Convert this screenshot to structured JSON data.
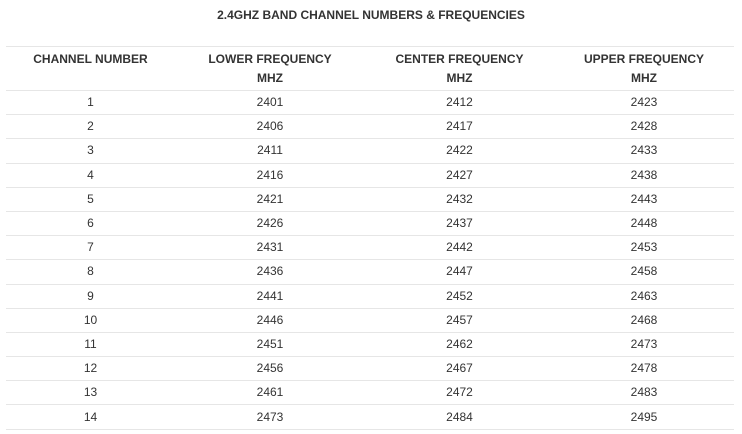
{
  "page": {
    "title": "2.4GHZ BAND CHANNEL NUMBERS & FREQUENCIES"
  },
  "table": {
    "headers": [
      {
        "line1": "CHANNEL NUMBER",
        "line2": ""
      },
      {
        "line1": "LOWER FREQUENCY",
        "line2": "MHZ"
      },
      {
        "line1": "CENTER FREQUENCY",
        "line2": "MHZ"
      },
      {
        "line1": "UPPER FREQUENCY",
        "line2": "MHZ"
      }
    ],
    "rows": [
      [
        "1",
        "2401",
        "2412",
        "2423"
      ],
      [
        "2",
        "2406",
        "2417",
        "2428"
      ],
      [
        "3",
        "2411",
        "2422",
        "2433"
      ],
      [
        "4",
        "2416",
        "2427",
        "2438"
      ],
      [
        "5",
        "2421",
        "2432",
        "2443"
      ],
      [
        "6",
        "2426",
        "2437",
        "2448"
      ],
      [
        "7",
        "2431",
        "2442",
        "2453"
      ],
      [
        "8",
        "2436",
        "2447",
        "2458"
      ],
      [
        "9",
        "2441",
        "2452",
        "2463"
      ],
      [
        "10",
        "2446",
        "2457",
        "2468"
      ],
      [
        "11",
        "2451",
        "2462",
        "2473"
      ],
      [
        "12",
        "2456",
        "2467",
        "2478"
      ],
      [
        "13",
        "2461",
        "2472",
        "2483"
      ],
      [
        "14",
        "2473",
        "2484",
        "2495"
      ]
    ]
  },
  "colors": {
    "text": "#333333",
    "row_border": "#e6e6e6",
    "background": "#ffffff"
  }
}
